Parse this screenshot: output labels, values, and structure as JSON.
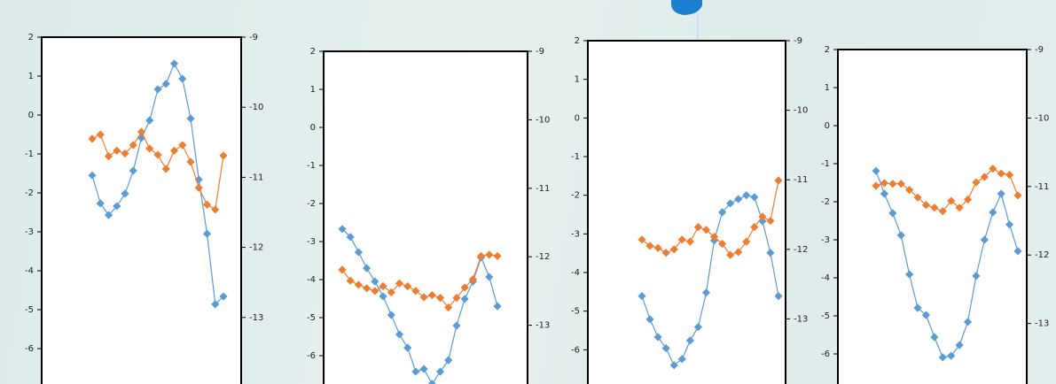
{
  "chart_data": [
    {
      "type": "line",
      "ylim": [
        -7,
        2
      ],
      "yticks": [
        -6,
        -5,
        -4,
        -3,
        -2,
        -1,
        0,
        1,
        2
      ],
      "y2lim": [
        -14,
        -9
      ],
      "y2ticks": [
        -13,
        -12,
        -11,
        -10,
        -9
      ],
      "categories": [
        null,
        null,
        null,
        null,
        null,
        null,
        null,
        null,
        null,
        null,
        null,
        null,
        null,
        null,
        null,
        null,
        null
      ],
      "series": [
        {
          "color": "#5b9bd5",
          "values": [
            -1.55,
            -2.27,
            -2.57,
            -2.34,
            -2.02,
            -1.43,
            -0.59,
            -0.14,
            0.66,
            0.8,
            1.32,
            0.93,
            -0.09,
            -1.66,
            -3.05,
            -4.86,
            -4.66
          ]
        },
        {
          "color": "#ed7d31",
          "axis": "y2",
          "values": [
            -10.45,
            -10.39,
            -10.7,
            -10.62,
            -10.66,
            -10.54,
            -10.35,
            -10.59,
            -10.68,
            -10.88,
            -10.62,
            -10.54,
            -10.78,
            -11.15,
            -11.39,
            -11.46,
            -10.69
          ]
        }
      ]
    },
    {
      "type": "line",
      "ylim": [
        -7,
        2
      ],
      "yticks": [
        -6,
        -5,
        -4,
        -3,
        -2,
        -1,
        0,
        1,
        2
      ],
      "y2lim": [
        -14,
        -9
      ],
      "y2ticks": [
        -13,
        -12,
        -11,
        -10,
        -9
      ],
      "categories": [
        null,
        null,
        null,
        null,
        null,
        null,
        null,
        null,
        null,
        null,
        null,
        null,
        null,
        null,
        null,
        null,
        null,
        null,
        null,
        null
      ],
      "series": [
        {
          "color": "#5b9bd5",
          "values": [
            -2.67,
            -2.88,
            -3.28,
            -3.7,
            -4.05,
            -4.44,
            -4.93,
            -5.44,
            -5.79,
            -6.42,
            -6.35,
            -6.74,
            -6.42,
            -6.12,
            -5.21,
            -4.51,
            -4.05,
            -3.42,
            -3.93,
            -4.7
          ]
        },
        {
          "color": "#ed7d31",
          "axis": "y2",
          "values": [
            -12.19,
            -12.35,
            -12.41,
            -12.46,
            -12.5,
            -12.43,
            -12.52,
            -12.39,
            -12.43,
            -12.5,
            -12.59,
            -12.56,
            -12.6,
            -12.74,
            -12.6,
            -12.45,
            -12.33,
            -11.99,
            -11.97,
            -11.99
          ]
        }
      ]
    },
    {
      "type": "line",
      "ylim": [
        -7,
        2
      ],
      "yticks": [
        -6,
        -5,
        -4,
        -3,
        -2,
        -1,
        0,
        1,
        2
      ],
      "y2lim": [
        -14,
        -9
      ],
      "y2ticks": [
        -13,
        -12,
        -11,
        -10,
        -9
      ],
      "categories": [
        null,
        null,
        null,
        null,
        null,
        null,
        null,
        null,
        null,
        null,
        null,
        null,
        null,
        null,
        null,
        null,
        null,
        null
      ],
      "series": [
        {
          "color": "#5b9bd5",
          "values": [
            -4.61,
            -5.21,
            -5.67,
            -5.96,
            -6.4,
            -6.24,
            -5.76,
            -5.41,
            -4.52,
            -3.17,
            -2.44,
            -2.21,
            -2.1,
            -2.0,
            -2.05,
            -2.67,
            -3.49,
            -4.61
          ]
        },
        {
          "color": "#ed7d31",
          "axis": "y2",
          "values": [
            -11.86,
            -11.95,
            -11.98,
            -12.05,
            -12.0,
            -11.86,
            -11.89,
            -11.68,
            -11.72,
            -11.82,
            -11.92,
            -12.08,
            -12.04,
            -11.89,
            -11.68,
            -11.53,
            -11.59,
            -11.01
          ]
        }
      ]
    },
    {
      "type": "line",
      "ylim": [
        -7,
        2
      ],
      "yticks": [
        -6,
        -5,
        -4,
        -3,
        -2,
        -1,
        0,
        1,
        2
      ],
      "y2lim": [
        -14,
        -9
      ],
      "y2ticks": [
        -13,
        -12,
        -11,
        -10,
        -9
      ],
      "categories": [
        null,
        null,
        null,
        null,
        null,
        null,
        null,
        null,
        null,
        null,
        null,
        null,
        null,
        null,
        null,
        null,
        null,
        null
      ],
      "series": [
        {
          "color": "#5b9bd5",
          "values": [
            -1.19,
            -1.79,
            -2.3,
            -2.88,
            -3.91,
            -4.79,
            -4.98,
            -5.56,
            -6.09,
            -6.05,
            -5.77,
            -5.16,
            -3.95,
            -3.0,
            -2.28,
            -1.79,
            -2.6,
            -3.3
          ]
        },
        {
          "color": "#ed7d31",
          "axis": "y2",
          "values": [
            -10.99,
            -10.95,
            -10.96,
            -10.96,
            -11.05,
            -11.16,
            -11.27,
            -11.31,
            -11.36,
            -11.21,
            -11.31,
            -11.19,
            -10.94,
            -10.86,
            -10.74,
            -10.81,
            -10.83,
            -11.13
          ]
        }
      ]
    }
  ]
}
